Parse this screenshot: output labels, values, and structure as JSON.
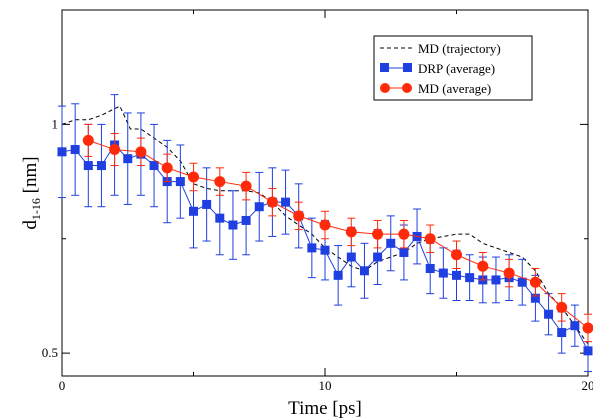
{
  "chart_data": {
    "type": "line",
    "title": "",
    "xlabel": "Time [ps]",
    "ylabel_main": "d",
    "ylabel_sub": "1-16",
    "ylabel_unit": " [nm]",
    "xlim": [
      0,
      20
    ],
    "ylim": [
      0.45,
      1.25
    ],
    "grid": false,
    "legend_position": "top-right",
    "x_ticks": [
      {
        "value": 0,
        "label": "0"
      },
      {
        "value": 10,
        "label": "10"
      },
      {
        "value": 20,
        "label": "20"
      }
    ],
    "y_ticks": [
      {
        "value": 0.5,
        "label": "0.5"
      },
      {
        "value": 1.0,
        "label": "1"
      }
    ],
    "series": [
      {
        "name": "MD (trajectory)",
        "style": "dashed",
        "color": "#000000",
        "points": [
          [
            0,
            1.0
          ],
          [
            0.5,
            1.01
          ],
          [
            1,
            1.01
          ],
          [
            1.5,
            1.02
          ],
          [
            2.2,
            1.04
          ],
          [
            2.6,
            0.99
          ],
          [
            3,
            0.99
          ],
          [
            3.5,
            0.97
          ],
          [
            4,
            0.95
          ],
          [
            4.5,
            0.92
          ],
          [
            5,
            0.87
          ],
          [
            5.5,
            0.86
          ],
          [
            6,
            0.855
          ],
          [
            6.5,
            0.855
          ],
          [
            7,
            0.855
          ],
          [
            7.5,
            0.85
          ],
          [
            8,
            0.83
          ],
          [
            8.5,
            0.8
          ],
          [
            9,
            0.78
          ],
          [
            9.5,
            0.76
          ],
          [
            10,
            0.73
          ],
          [
            10.5,
            0.71
          ],
          [
            11,
            0.69
          ],
          [
            11.5,
            0.68
          ],
          [
            12,
            0.7
          ],
          [
            12.5,
            0.71
          ],
          [
            13,
            0.72
          ],
          [
            13.5,
            0.74
          ],
          [
            14,
            0.75
          ],
          [
            15,
            0.76
          ],
          [
            15.5,
            0.76
          ],
          [
            16,
            0.74
          ],
          [
            16.5,
            0.73
          ],
          [
            17,
            0.72
          ],
          [
            17.5,
            0.71
          ],
          [
            18,
            0.68
          ],
          [
            18.5,
            0.63
          ],
          [
            19,
            0.6
          ],
          [
            19.5,
            0.56
          ],
          [
            20,
            0.52
          ]
        ]
      },
      {
        "name": "DRP (average)",
        "style": "solid-square",
        "color": "#1f3fe0",
        "points": [
          [
            0,
            0.94
          ],
          [
            0.5,
            0.945
          ],
          [
            1,
            0.91
          ],
          [
            1.5,
            0.91
          ],
          [
            2,
            0.955
          ],
          [
            2.5,
            0.925
          ],
          [
            3,
            0.935
          ],
          [
            3.5,
            0.91
          ],
          [
            4,
            0.875
          ],
          [
            4.5,
            0.875
          ],
          [
            5,
            0.81
          ],
          [
            5.5,
            0.825
          ],
          [
            6,
            0.795
          ],
          [
            6.5,
            0.78
          ],
          [
            7,
            0.79
          ],
          [
            7.5,
            0.82
          ],
          [
            8,
            0.83
          ],
          [
            8.5,
            0.83
          ],
          [
            9,
            0.8
          ],
          [
            9.5,
            0.73
          ],
          [
            10,
            0.725
          ],
          [
            10.5,
            0.67
          ],
          [
            11,
            0.71
          ],
          [
            11.5,
            0.68
          ],
          [
            12,
            0.71
          ],
          [
            12.5,
            0.74
          ],
          [
            13,
            0.72
          ],
          [
            13.5,
            0.755
          ],
          [
            14,
            0.685
          ],
          [
            14.5,
            0.675
          ],
          [
            15,
            0.67
          ],
          [
            15.5,
            0.665
          ],
          [
            16,
            0.66
          ],
          [
            16.5,
            0.66
          ],
          [
            17,
            0.665
          ],
          [
            17.5,
            0.655
          ],
          [
            18,
            0.62
          ],
          [
            18.5,
            0.585
          ],
          [
            19,
            0.545
          ],
          [
            19.5,
            0.56
          ],
          [
            20,
            0.505
          ]
        ],
        "error": [
          0.1,
          0.1,
          0.09,
          0.09,
          0.11,
          0.1,
          0.09,
          0.09,
          0.09,
          0.08,
          0.08,
          0.08,
          0.08,
          0.075,
          0.075,
          0.075,
          0.075,
          0.07,
          0.07,
          0.065,
          0.065,
          0.065,
          0.065,
          0.06,
          0.06,
          0.06,
          0.06,
          0.06,
          0.055,
          0.055,
          0.055,
          0.05,
          0.05,
          0.05,
          0.05,
          0.05,
          0.05,
          0.045,
          0.045,
          0.045,
          0.045
        ]
      },
      {
        "name": "MD (average)",
        "style": "solid-circle",
        "color": "#ff2a0a",
        "points": [
          [
            1,
            0.965
          ],
          [
            2,
            0.945
          ],
          [
            3,
            0.94
          ],
          [
            4,
            0.905
          ],
          [
            5,
            0.885
          ],
          [
            6,
            0.875
          ],
          [
            7,
            0.865
          ],
          [
            8,
            0.83
          ],
          [
            9,
            0.8
          ],
          [
            10,
            0.78
          ],
          [
            11,
            0.765
          ],
          [
            12,
            0.76
          ],
          [
            13,
            0.76
          ],
          [
            14,
            0.75
          ],
          [
            15,
            0.715
          ],
          [
            16,
            0.69
          ],
          [
            17,
            0.675
          ],
          [
            18,
            0.655
          ],
          [
            19,
            0.6
          ],
          [
            20,
            0.555
          ]
        ],
        "error": [
          0.035,
          0.035,
          0.03,
          0.03,
          0.03,
          0.03,
          0.03,
          0.03,
          0.03,
          0.03,
          0.03,
          0.03,
          0.03,
          0.03,
          0.03,
          0.03,
          0.03,
          0.03,
          0.03,
          0.03
        ]
      }
    ]
  }
}
